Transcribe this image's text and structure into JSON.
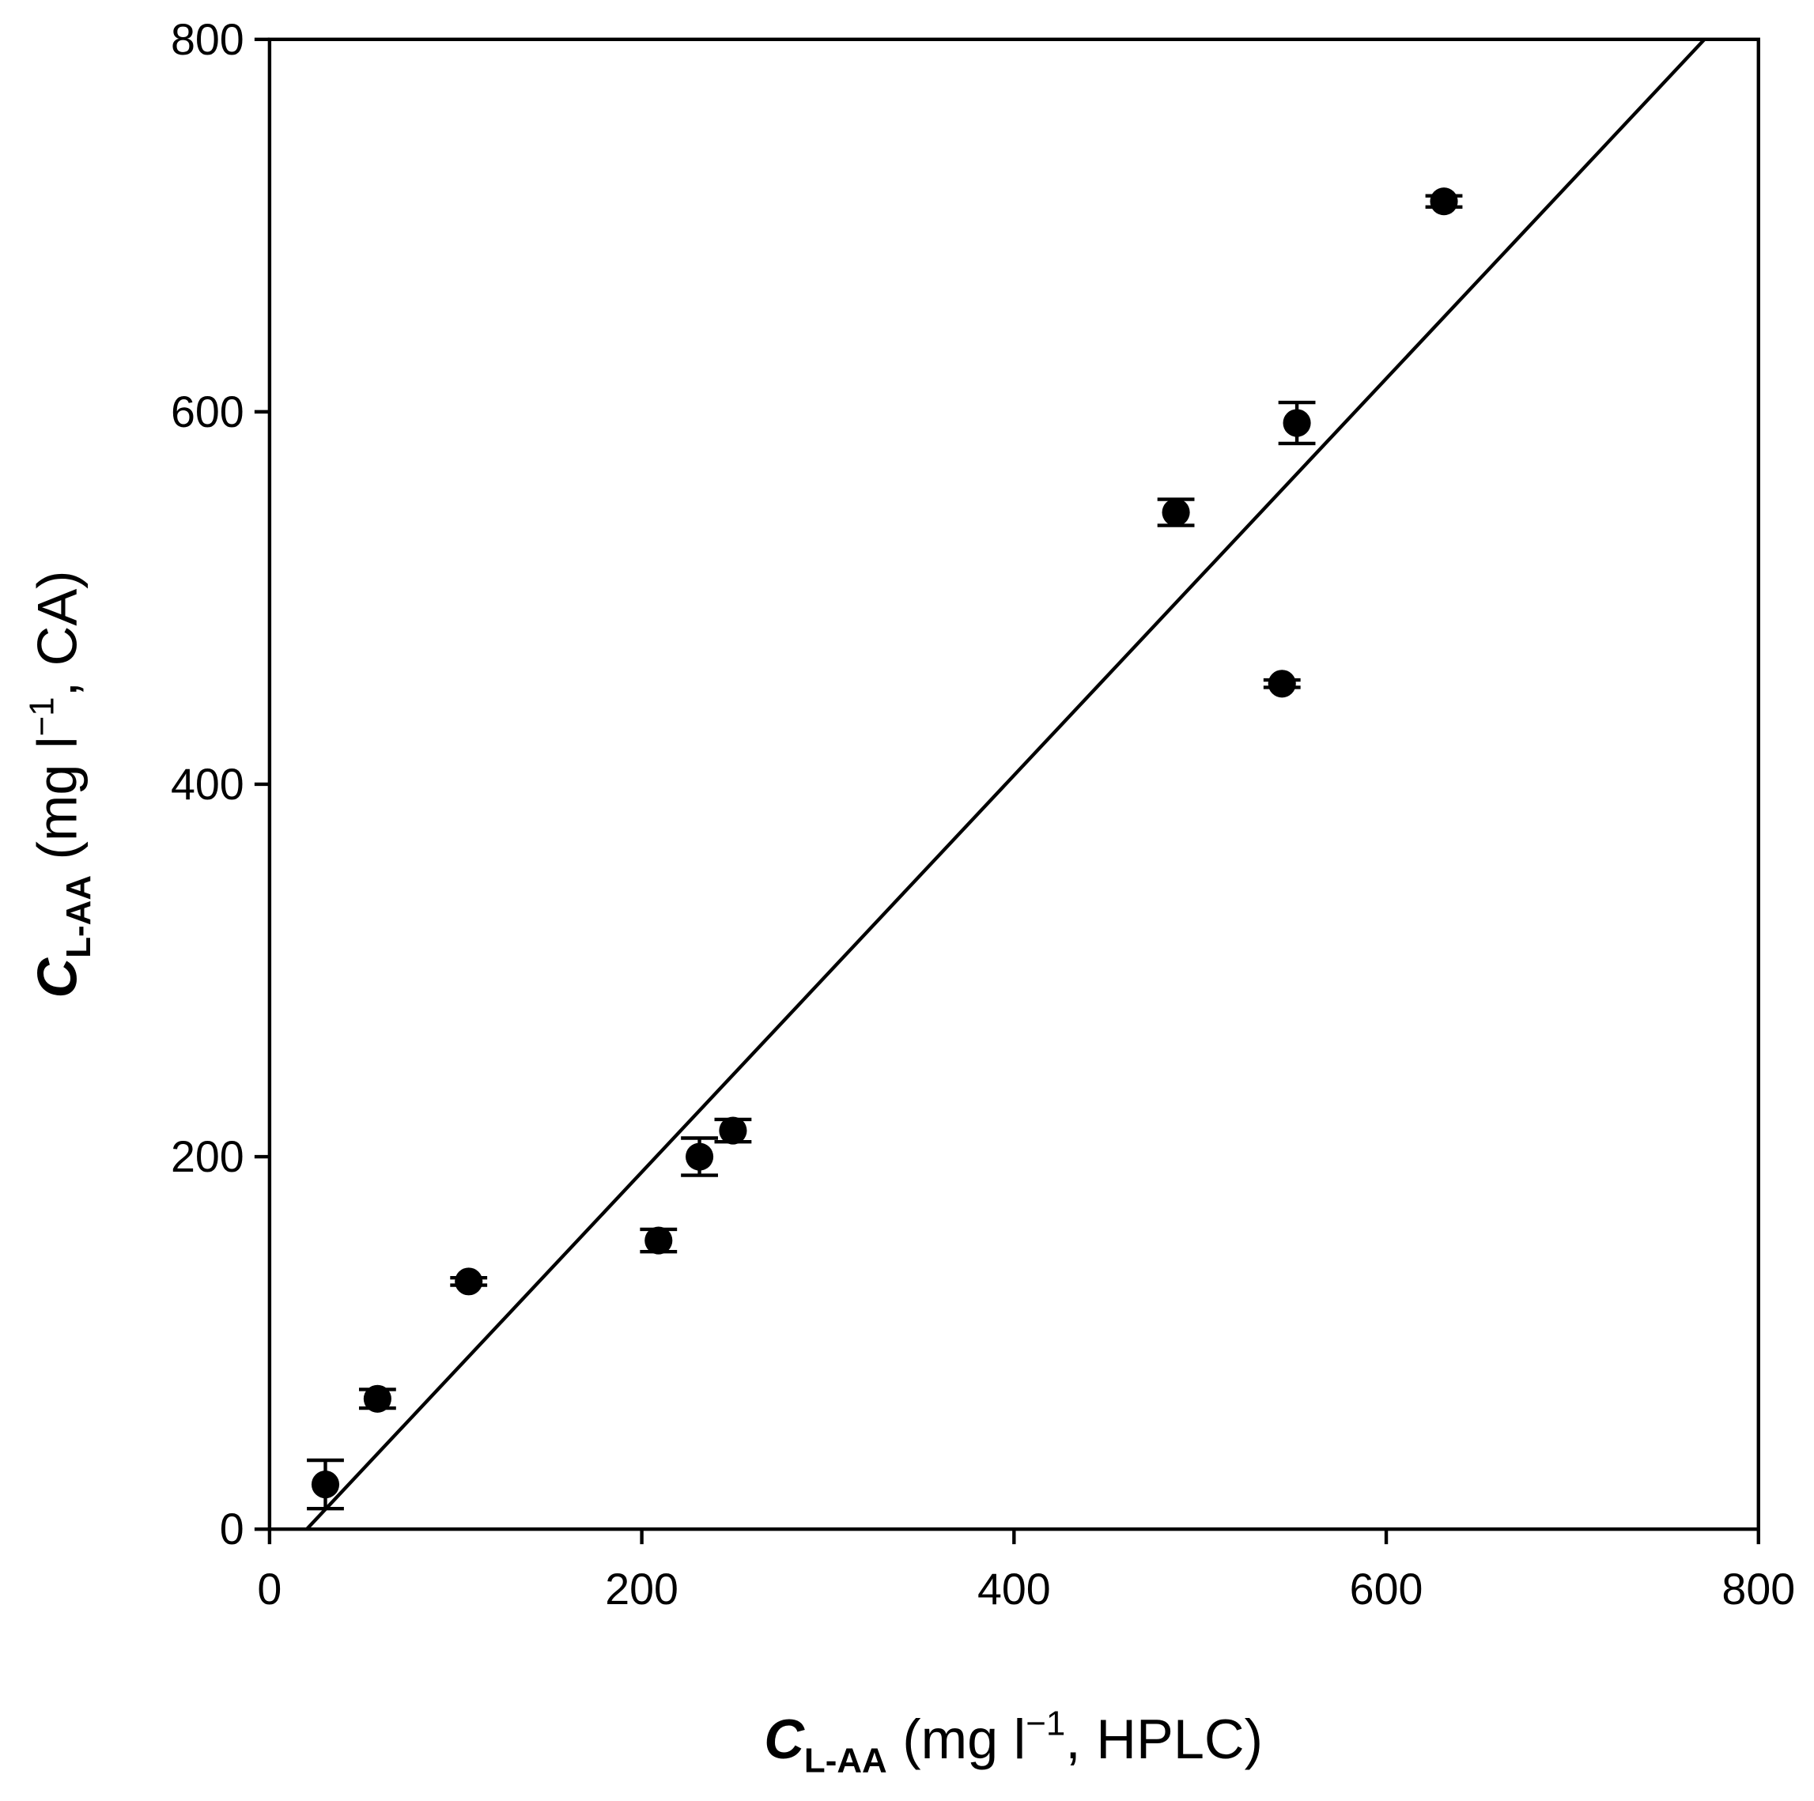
{
  "chart_data": {
    "type": "scatter",
    "x_label": {
      "symbol": "C",
      "subscript": "L-AA",
      "text": " (mg l",
      "superscript": "−1",
      "suffix": ", HPLC)"
    },
    "y_label": {
      "symbol": "C",
      "subscript": "L-AA",
      "text": " (mg l",
      "superscript": "−1",
      "suffix": ", CA)"
    },
    "xlim": [
      0,
      800
    ],
    "ylim": [
      0,
      800
    ],
    "xticks": [
      0,
      200,
      400,
      600,
      800
    ],
    "yticks": [
      0,
      200,
      400,
      600,
      800
    ],
    "series": [
      {
        "color": "#000000",
        "x": [
          30,
          58,
          107,
          209,
          231,
          249,
          487,
          544,
          552,
          631
        ],
        "values": [
          24,
          70,
          133,
          155,
          200,
          214,
          546,
          454,
          594,
          713
        ],
        "errors": [
          13,
          5,
          2,
          6,
          10,
          6,
          7,
          2,
          11,
          3
        ]
      }
    ],
    "fit": {
      "color": "#000000",
      "x": [
        20,
        771
      ],
      "y": [
        0,
        800
      ]
    }
  }
}
